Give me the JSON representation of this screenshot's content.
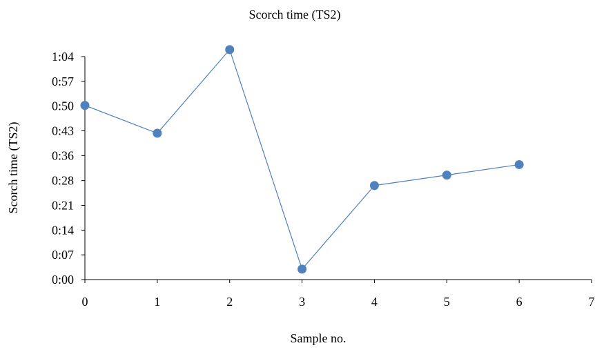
{
  "chart_data": {
    "type": "scatter",
    "title": "Scorch time (TS2)",
    "xlabel": "Sample no.",
    "ylabel": "Scorch time (TS2)",
    "xlim": [
      0,
      7
    ],
    "ylim_seconds": [
      0,
      64
    ],
    "x_ticks": [
      "0",
      "1",
      "2",
      "3",
      "4",
      "5",
      "6",
      "7"
    ],
    "y_ticks": [
      "0:00",
      "0:07",
      "0:14",
      "0:21",
      "0:28",
      "0:36",
      "0:43",
      "0:50",
      "0:57",
      "1:04"
    ],
    "y_tick_values_seconds": [
      0,
      7.1,
      14.2,
      21.3,
      28.4,
      35.6,
      42.7,
      49.8,
      56.9,
      64
    ],
    "grid": false,
    "legend": "none",
    "style": "markers connected by straight lines",
    "color": "#4f81bd",
    "series": [
      {
        "x": [
          0,
          1,
          2,
          3,
          4,
          5,
          6
        ],
        "y_seconds": [
          50,
          42,
          66,
          3,
          27,
          30,
          33
        ]
      }
    ]
  }
}
